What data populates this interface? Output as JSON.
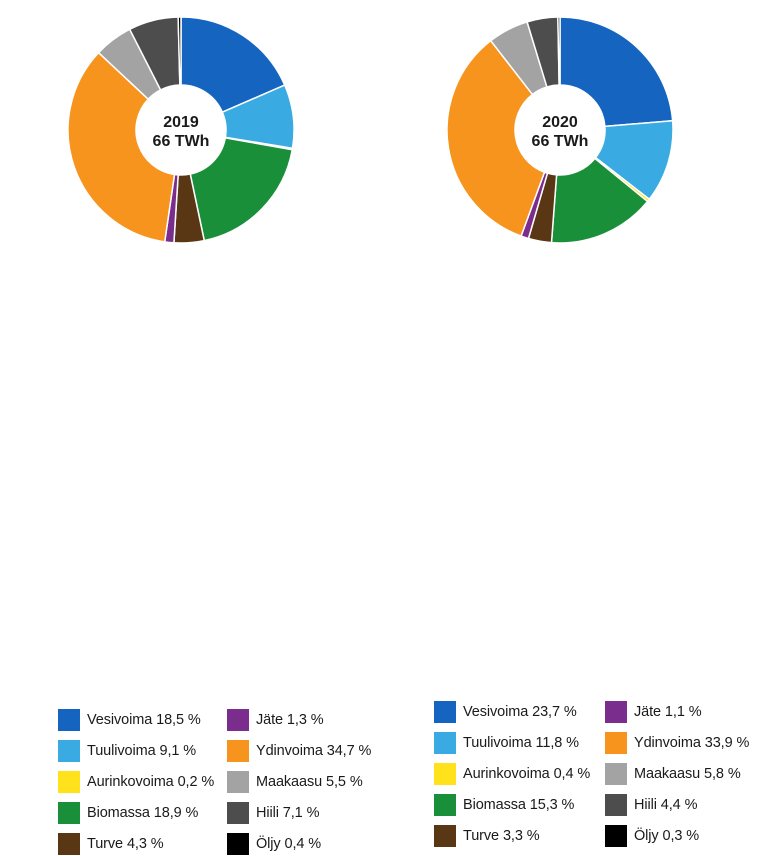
{
  "chart_data": [
    {
      "type": "pie",
      "style": "donut",
      "title": "2019",
      "subtitle": "66 TWh",
      "slices": [
        {
          "label": "Vesivoima 18,5 %",
          "name": "Vesivoima",
          "value": 18.5,
          "color": "#1565c0"
        },
        {
          "label": "Tuulivoima 9,1 %",
          "name": "Tuulivoima",
          "value": 9.1,
          "color": "#3aabe2"
        },
        {
          "label": "Aurinkovoima 0,2 %",
          "name": "Aurinkovoima",
          "value": 0.2,
          "color": "#ffe11c"
        },
        {
          "label": "Biomassa 18,9 %",
          "name": "Biomassa",
          "value": 18.9,
          "color": "#1a8f3a"
        },
        {
          "label": "Turve 4,3 %",
          "name": "Turve",
          "value": 4.3,
          "color": "#5a3714"
        },
        {
          "label": "Jäte 1,3 %",
          "name": "Jäte",
          "value": 1.3,
          "color": "#7b2d8e"
        },
        {
          "label": "Ydinvoima 34,7 %",
          "name": "Ydinvoima",
          "value": 34.7,
          "color": "#f7941d"
        },
        {
          "label": "Maakaasu 5,5 %",
          "name": "Maakaasu",
          "value": 5.5,
          "color": "#a3a3a3"
        },
        {
          "label": "Hiili 7,1 %",
          "name": "Hiili",
          "value": 7.1,
          "color": "#4d4d4d"
        },
        {
          "label": "Öljy 0,4 %",
          "name": "Öljy",
          "value": 0.4,
          "color": "#000000"
        }
      ]
    },
    {
      "type": "pie",
      "style": "donut",
      "title": "2020",
      "subtitle": "66 TWh",
      "slices": [
        {
          "label": "Vesivoima 23,7 %",
          "name": "Vesivoima",
          "value": 23.7,
          "color": "#1565c0"
        },
        {
          "label": "Tuulivoima 11,8 %",
          "name": "Tuulivoima",
          "value": 11.8,
          "color": "#3aabe2"
        },
        {
          "label": "Aurinkovoima 0,4 %",
          "name": "Aurinkovoima",
          "value": 0.4,
          "color": "#ffe11c"
        },
        {
          "label": "Biomassa 15,3 %",
          "name": "Biomassa",
          "value": 15.3,
          "color": "#1a8f3a"
        },
        {
          "label": "Turve 3,3 %",
          "name": "Turve",
          "value": 3.3,
          "color": "#5a3714"
        },
        {
          "label": "Jäte 1,1 %",
          "name": "Jäte",
          "value": 1.1,
          "color": "#7b2d8e"
        },
        {
          "label": "Ydinvoima 33,9 %",
          "name": "Ydinvoima",
          "value": 33.9,
          "color": "#f7941d"
        },
        {
          "label": "Maakaasu 5,8 %",
          "name": "Maakaasu",
          "value": 5.8,
          "color": "#a3a3a3"
        },
        {
          "label": "Hiili 4,4 %",
          "name": "Hiili",
          "value": 4.4,
          "color": "#4d4d4d"
        },
        {
          "label": "Öljy 0,3 %",
          "name": "Öljy",
          "value": 0.3,
          "color": "#000000"
        }
      ]
    }
  ]
}
